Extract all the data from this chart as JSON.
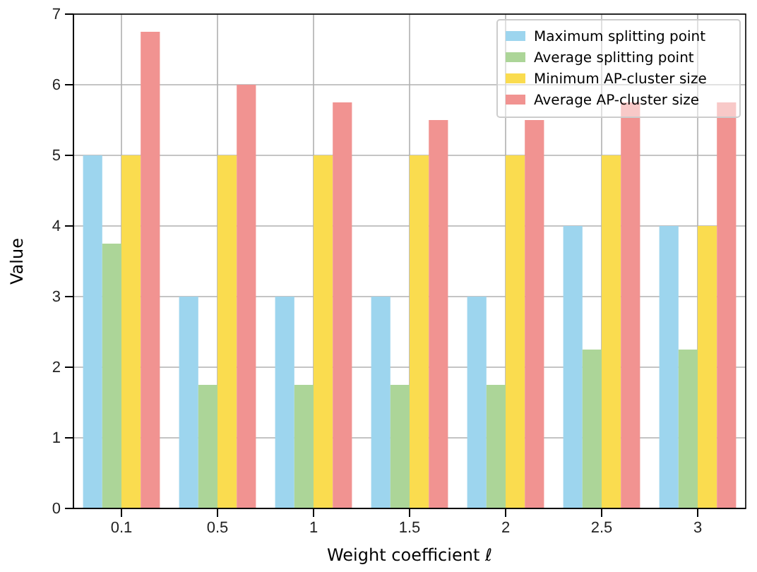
{
  "chart_data": {
    "type": "bar",
    "xlabel": "Weight coefficient ℓ",
    "ylabel": "Value",
    "categories": [
      "0.1",
      "0.5",
      "1",
      "1.5",
      "2",
      "2.5",
      "3"
    ],
    "series": [
      {
        "name": "Maximum splitting point",
        "color": "#9dd5ee",
        "values": [
          5,
          3,
          3,
          3,
          3,
          4,
          4
        ]
      },
      {
        "name": "Average splitting point",
        "color": "#acd598",
        "values": [
          3.75,
          1.75,
          1.75,
          1.75,
          1.75,
          2.25,
          2.25
        ]
      },
      {
        "name": "Minimum AP-cluster size",
        "color": "#fadc4f",
        "values": [
          5,
          5,
          5,
          5,
          5,
          5,
          4
        ]
      },
      {
        "name": "Average AP-cluster size",
        "color": "#f19391",
        "values": [
          6.75,
          6,
          5.75,
          5.5,
          5.5,
          5.75,
          5.75
        ]
      }
    ],
    "ylim": [
      0,
      7
    ],
    "yticks": [
      0,
      1,
      2,
      3,
      4,
      5,
      6,
      7
    ],
    "grid": true,
    "legend": "top right"
  }
}
